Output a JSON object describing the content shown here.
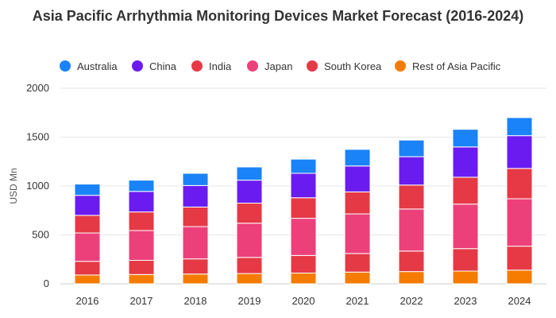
{
  "chart_data": {
    "type": "bar",
    "stacked": true,
    "title": "Asia Pacific Arrhythmia Monitoring Devices Market Forecast (2016-2024)",
    "ylabel": "USD Mn",
    "xlabel": "",
    "ylim": [
      0,
      2000
    ],
    "yticks": [
      0,
      500,
      1000,
      1500,
      2000
    ],
    "grid": true,
    "legend_position": "top",
    "categories": [
      "2016",
      "2017",
      "2018",
      "2019",
      "2020",
      "2021",
      "2022",
      "2023",
      "2024"
    ],
    "series": [
      {
        "name": "Rest of Asia Pacific",
        "color": "#f57c00",
        "values": [
          90,
          95,
          100,
          105,
          110,
          120,
          125,
          130,
          140
        ]
      },
      {
        "name": "South Korea",
        "color": "#e53945",
        "values": [
          140,
          145,
          155,
          165,
          180,
          190,
          210,
          230,
          245
        ]
      },
      {
        "name": "Japan",
        "color": "#ec407a",
        "values": [
          290,
          305,
          330,
          350,
          380,
          405,
          430,
          455,
          485
        ]
      },
      {
        "name": "India",
        "color": "#e53945",
        "values": [
          180,
          190,
          200,
          205,
          210,
          225,
          245,
          275,
          310
        ]
      },
      {
        "name": "China",
        "color": "#6a1cf0",
        "values": [
          205,
          210,
          220,
          235,
          250,
          265,
          290,
          310,
          335
        ]
      },
      {
        "name": "Australia",
        "color": "#1a83f7",
        "values": [
          115,
          115,
          125,
          135,
          145,
          170,
          170,
          180,
          185
        ]
      }
    ],
    "legend_order": [
      "Australia",
      "China",
      "India",
      "Japan",
      "South Korea",
      "Rest of Asia Pacific"
    ]
  }
}
